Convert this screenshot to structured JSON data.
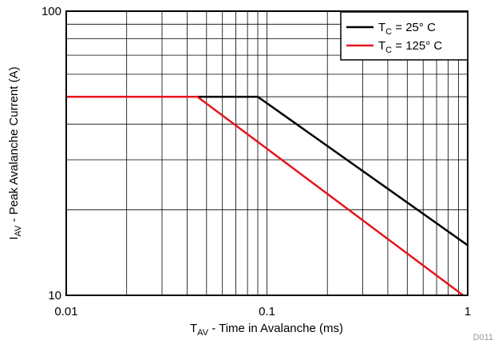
{
  "chart_data": {
    "type": "line",
    "x_scale": "log",
    "y_scale": "log",
    "xlim": [
      0.01,
      1
    ],
    "ylim": [
      10,
      100
    ],
    "x_ticks": [
      "0.01",
      "0.1",
      "1"
    ],
    "y_ticks": [
      "10",
      "100"
    ],
    "grid": true,
    "legend_position": "top-right",
    "xlabel": {
      "main": "T",
      "sub": "AV",
      "rest": " - Time in Avalanche (ms)"
    },
    "ylabel": {
      "main": "I",
      "sub": "AV",
      "rest": " - Peak Avalanche Current (A)"
    },
    "series": [
      {
        "legend": {
          "main": "T",
          "sub": "C",
          "rest": " = 25° C"
        },
        "color": "#000000",
        "x": [
          0.01,
          0.09,
          1
        ],
        "y": [
          50,
          50,
          15
        ]
      },
      {
        "legend": {
          "main": "T",
          "sub": "C",
          "rest": " = 125° C"
        },
        "color": "#e8141c",
        "x": [
          0.01,
          0.045,
          0.95
        ],
        "y": [
          50,
          50,
          10
        ]
      }
    ],
    "annotation": "D011"
  }
}
